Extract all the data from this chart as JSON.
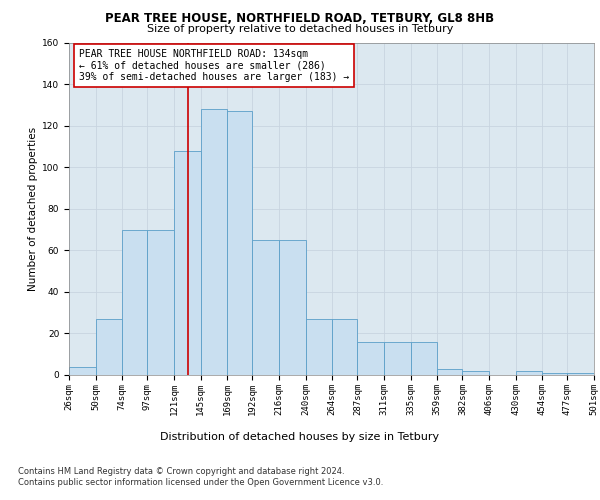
{
  "title1": "PEAR TREE HOUSE, NORTHFIELD ROAD, TETBURY, GL8 8HB",
  "title2": "Size of property relative to detached houses in Tetbury",
  "xlabel": "Distribution of detached houses by size in Tetbury",
  "ylabel": "Number of detached properties",
  "bin_labels": [
    "26sqm",
    "50sqm",
    "74sqm",
    "97sqm",
    "121sqm",
    "145sqm",
    "169sqm",
    "192sqm",
    "216sqm",
    "240sqm",
    "264sqm",
    "287sqm",
    "311sqm",
    "335sqm",
    "359sqm",
    "382sqm",
    "406sqm",
    "430sqm",
    "454sqm",
    "477sqm",
    "501sqm"
  ],
  "bar_heights": [
    4,
    27,
    70,
    70,
    108,
    128,
    127,
    65,
    65,
    27,
    27,
    16,
    16,
    16,
    3,
    2,
    0,
    2,
    1,
    1
  ],
  "bin_edges": [
    26,
    50,
    74,
    97,
    121,
    145,
    169,
    192,
    216,
    240,
    264,
    287,
    311,
    335,
    359,
    382,
    406,
    430,
    454,
    477,
    501
  ],
  "bar_color": "#c9dff0",
  "bar_edge_color": "#5a9ec8",
  "vline_x": 134,
  "vline_color": "#cc0000",
  "annotation_text": "PEAR TREE HOUSE NORTHFIELD ROAD: 134sqm\n← 61% of detached houses are smaller (286)\n39% of semi-detached houses are larger (183) →",
  "annotation_box_color": "#ffffff",
  "annotation_box_edge": "#cc0000",
  "ylim": [
    0,
    160
  ],
  "yticks": [
    0,
    20,
    40,
    60,
    80,
    100,
    120,
    140,
    160
  ],
  "grid_color": "#c8d4e0",
  "background_color": "#dce8f0",
  "footnote": "Contains HM Land Registry data © Crown copyright and database right 2024.\nContains public sector information licensed under the Open Government Licence v3.0.",
  "title1_fontsize": 8.5,
  "title2_fontsize": 8,
  "xlabel_fontsize": 8,
  "ylabel_fontsize": 7.5,
  "tick_fontsize": 6.5,
  "annotation_fontsize": 7,
  "footnote_fontsize": 6
}
